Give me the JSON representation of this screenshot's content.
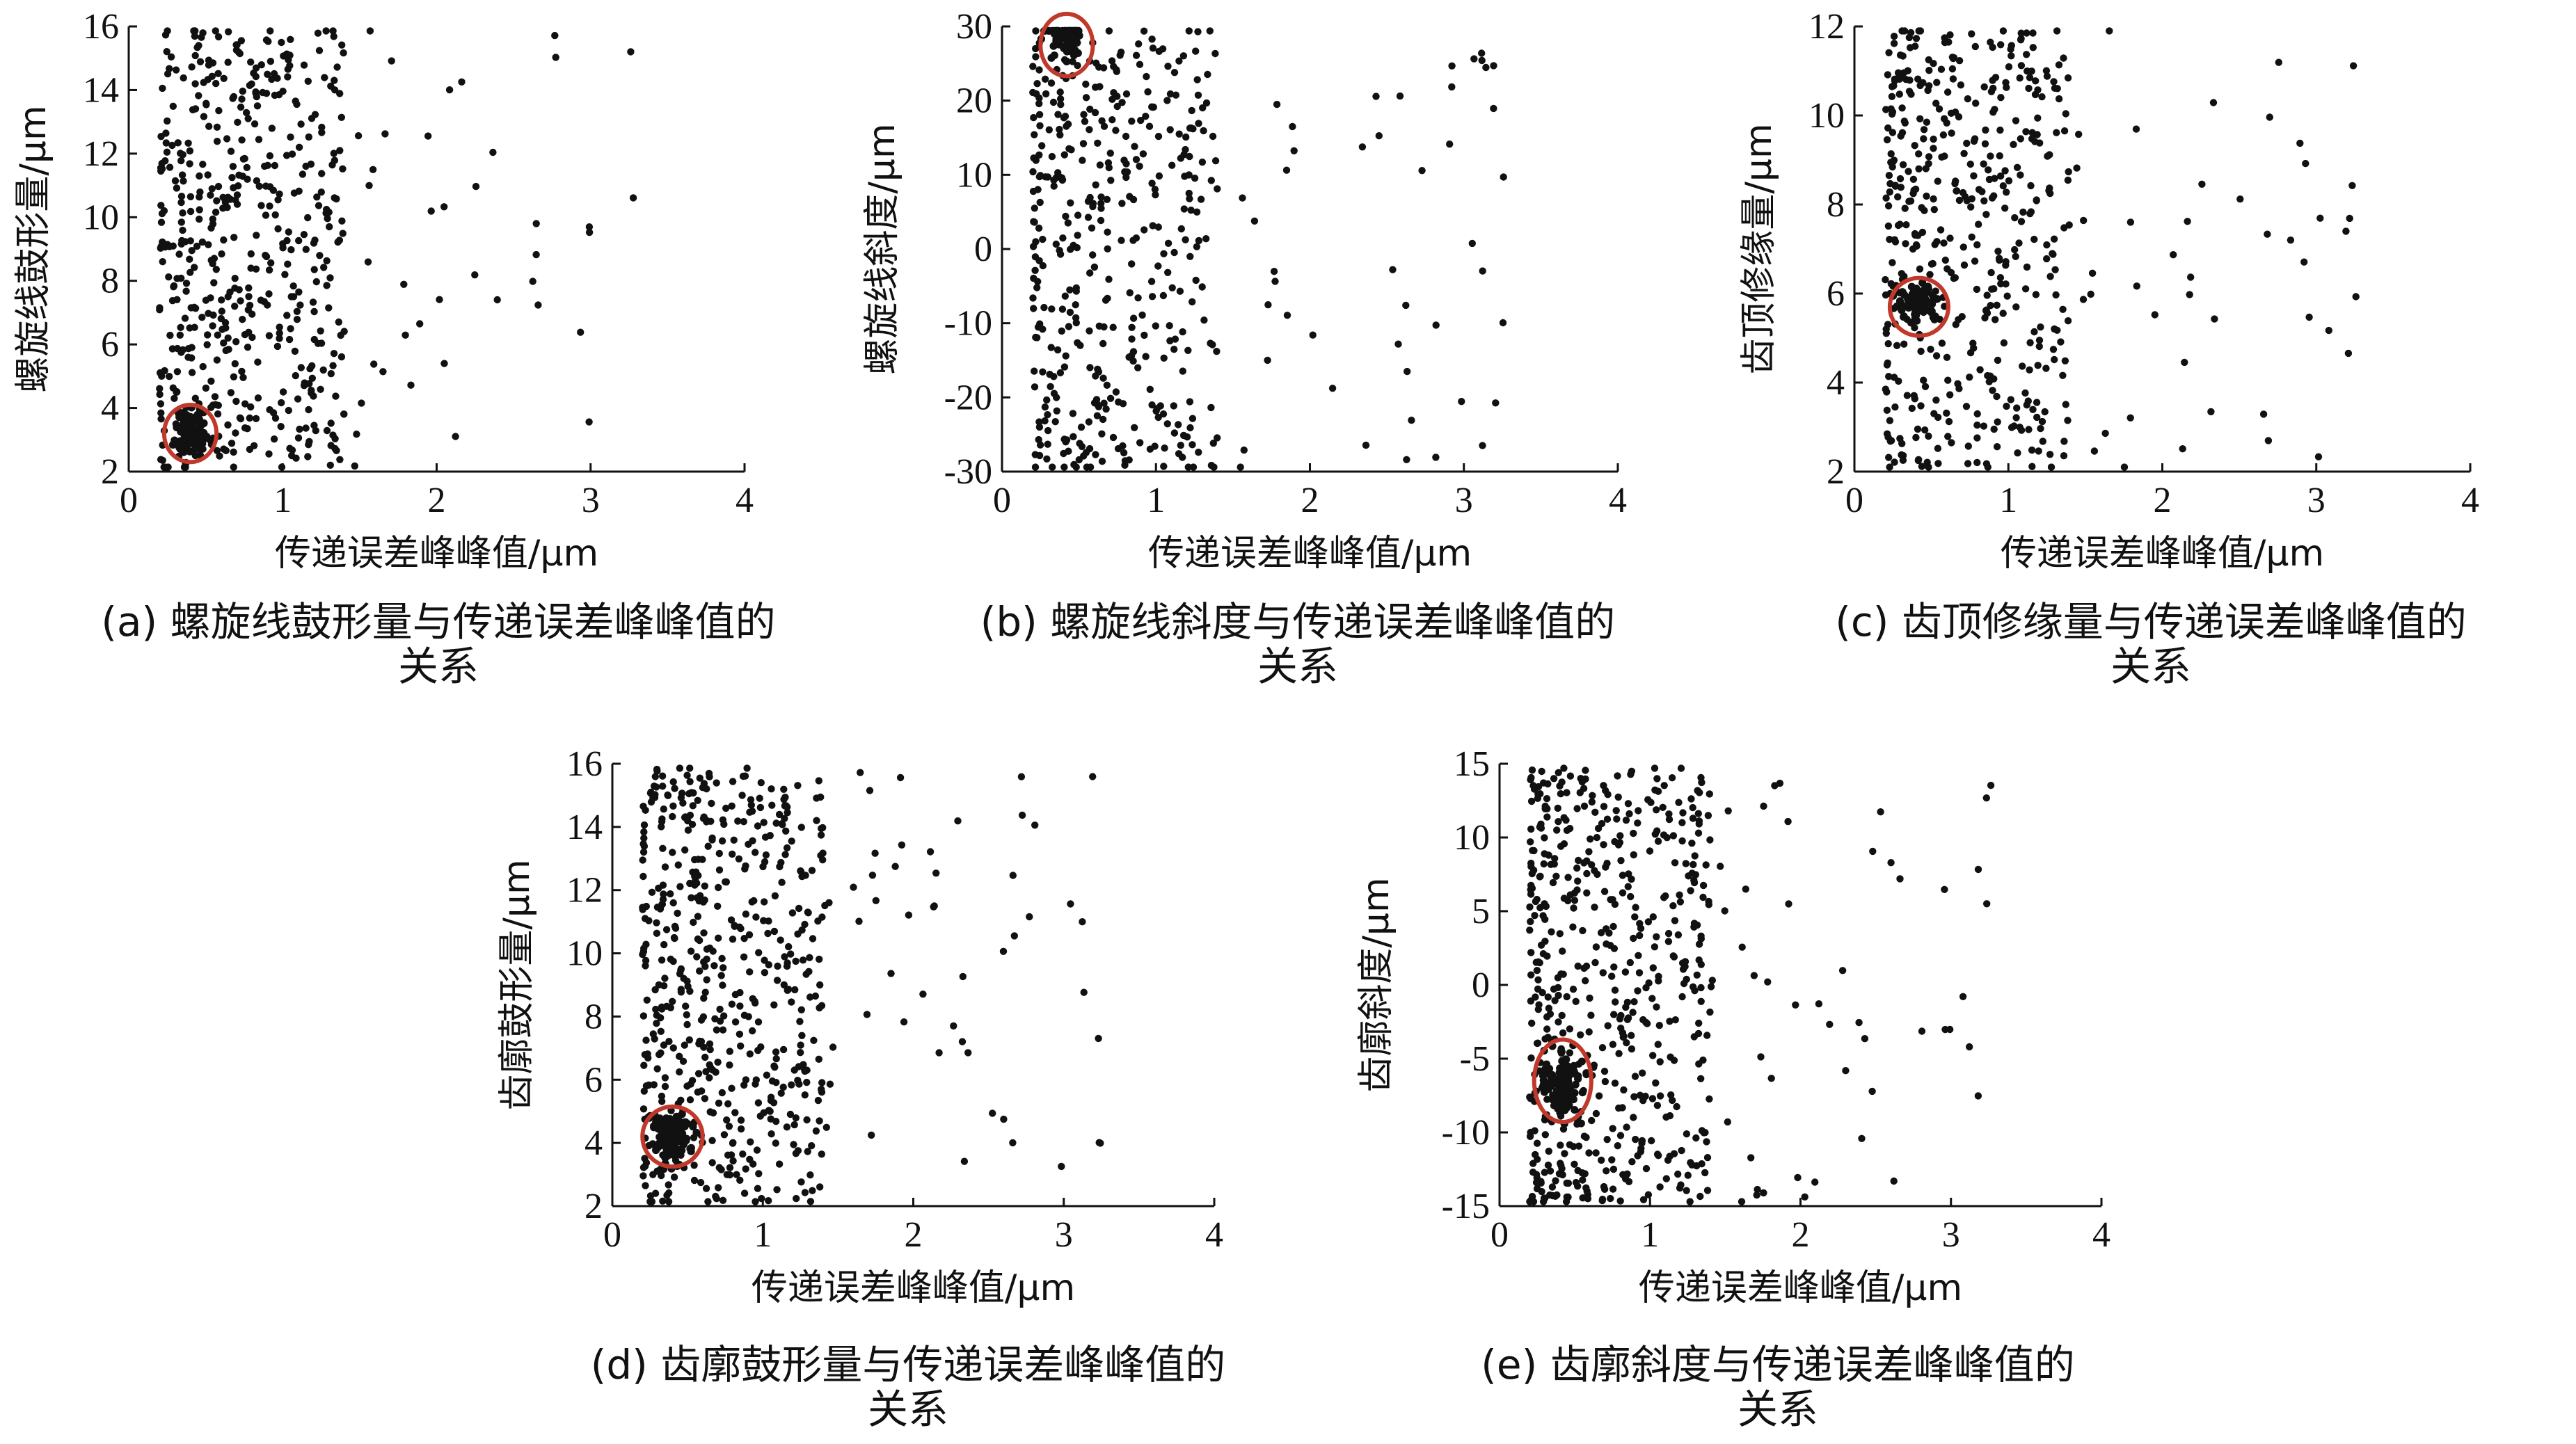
{
  "charts": [
    {
      "id": "a",
      "caption_prefix": "(a)",
      "caption_line1": "螺旋线鼓形量与传递误差峰峰值的",
      "caption_line2": "关系",
      "chart_data": {
        "type": "scatter",
        "xlabel": "传递误差峰峰值/μm",
        "ylabel": "螺旋线鼓形量/μm",
        "xlim": [
          0,
          4
        ],
        "ylim": [
          2,
          16
        ],
        "xticks": [
          0,
          1,
          2,
          3,
          4
        ],
        "yticks": [
          2,
          4,
          6,
          8,
          10,
          12,
          14,
          16
        ],
        "highlight": {
          "x": 0.4,
          "y": 3.2,
          "rx": 0.17,
          "ry": 0.9,
          "color": "#c0392b"
        },
        "cluster": {
          "x": 0.4,
          "y": 3.2,
          "sx": 0.05,
          "sy": 0.45,
          "n": 90
        },
        "seed": 11,
        "spread": {
          "n": 520,
          "xmin": 0.2,
          "xmax": 1.4,
          "extra_n": 40,
          "extra_xmax": 3.3
        }
      }
    },
    {
      "id": "b",
      "caption_prefix": "(b)",
      "caption_line1": "螺旋线斜度与传递误差峰峰值的",
      "caption_line2": "关系",
      "chart_data": {
        "type": "scatter",
        "xlabel": "传递误差峰峰值/μm",
        "ylabel": "螺旋线斜度/μm",
        "xlim": [
          0,
          4
        ],
        "ylim": [
          -30,
          30
        ],
        "xticks": [
          0,
          1,
          2,
          3,
          4
        ],
        "yticks": [
          -30,
          -20,
          -10,
          0,
          10,
          20,
          30
        ],
        "highlight": {
          "x": 0.42,
          "y": 27.5,
          "rx": 0.17,
          "ry": 4.2,
          "color": "#c0392b"
        },
        "cluster": {
          "x": 0.42,
          "y": 28.8,
          "sx": 0.06,
          "sy": 1.2,
          "n": 80
        },
        "seed": 23,
        "spread": {
          "n": 420,
          "xmin": 0.2,
          "xmax": 1.4,
          "extra_n": 45,
          "extra_xmax": 3.3
        }
      }
    },
    {
      "id": "c",
      "caption_prefix": "(c)",
      "caption_line1": "齿顶修缘量与传递误差峰峰值的",
      "caption_line2": "关系",
      "chart_data": {
        "type": "scatter",
        "xlabel": "传递误差峰峰值/μm",
        "ylabel": "齿顶修缘量/μm",
        "xlim": [
          0,
          4
        ],
        "ylim": [
          2,
          12
        ],
        "xticks": [
          0,
          1,
          2,
          3,
          4
        ],
        "yticks": [
          2,
          4,
          6,
          8,
          10,
          12
        ],
        "highlight": {
          "x": 0.42,
          "y": 5.7,
          "rx": 0.19,
          "ry": 0.65,
          "color": "#c0392b"
        },
        "cluster": {
          "x": 0.42,
          "y": 5.8,
          "sx": 0.06,
          "sy": 0.2,
          "n": 70
        },
        "seed": 37,
        "spread": {
          "n": 480,
          "xmin": 0.2,
          "xmax": 1.4,
          "extra_n": 45,
          "extra_xmax": 3.3
        }
      }
    },
    {
      "id": "d",
      "caption_prefix": "(d)",
      "caption_line1": "齿廓鼓形量与传递误差峰峰值的",
      "caption_line2": "关系",
      "chart_data": {
        "type": "scatter",
        "xlabel": "传递误差峰峰值/μm",
        "ylabel": "齿廓鼓形量/μm",
        "xlim": [
          0,
          4
        ],
        "ylim": [
          2,
          16
        ],
        "xticks": [
          0,
          1,
          2,
          3,
          4
        ],
        "yticks": [
          2,
          4,
          6,
          8,
          10,
          12,
          14,
          16
        ],
        "highlight": {
          "x": 0.4,
          "y": 4.2,
          "rx": 0.2,
          "ry": 0.95,
          "color": "#c0392b"
        },
        "cluster": {
          "x": 0.4,
          "y": 4.2,
          "sx": 0.06,
          "sy": 0.4,
          "n": 110
        },
        "seed": 51,
        "spread": {
          "n": 560,
          "xmin": 0.2,
          "xmax": 1.4,
          "extra_n": 50,
          "extra_xmax": 3.3
        }
      }
    },
    {
      "id": "e",
      "caption_prefix": "(e)",
      "caption_line1": "齿廓斜度与传递误差峰峰值的",
      "caption_line2": "关系",
      "chart_data": {
        "type": "scatter",
        "xlabel": "传递误差峰峰值/μm",
        "ylabel": "齿廓斜度/μm",
        "xlim": [
          0,
          4
        ],
        "ylim": [
          -15,
          15
        ],
        "xticks": [
          0,
          1,
          2,
          3,
          4
        ],
        "yticks": [
          -15,
          -10,
          -5,
          0,
          5,
          10,
          15
        ],
        "highlight": {
          "x": 0.42,
          "y": -6.5,
          "rx": 0.19,
          "ry": 2.8,
          "color": "#c0392b"
        },
        "cluster": {
          "x": 0.42,
          "y": -6.8,
          "sx": 0.06,
          "sy": 1.0,
          "n": 100
        },
        "seed": 67,
        "spread": {
          "n": 560,
          "xmin": 0.2,
          "xmax": 1.4,
          "extra_n": 50,
          "extra_xmax": 3.3
        }
      }
    }
  ]
}
